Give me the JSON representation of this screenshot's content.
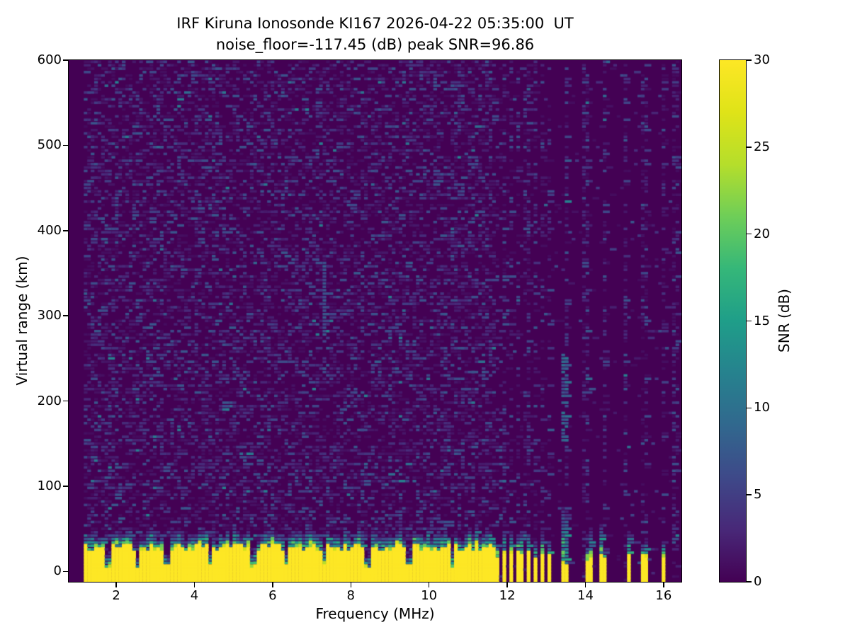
{
  "title": {
    "line1": "IRF Kiruna Ionosonde KI167 2026-04-22 05:35:00  UT",
    "line2": "noise_floor=-117.45 (dB) peak SNR=96.86"
  },
  "station": "KI167",
  "timestamp_ut": "2026-04-22 05:35:00 UT",
  "chart_data": {
    "type": "heatmap",
    "title": "IRF Kiruna Ionosonde KI167 2026-04-22 05:35:00  UT",
    "subtitle": "noise_floor=-117.45 (dB) peak SNR=96.86",
    "xlabel": "Frequency (MHz)",
    "ylabel": "Virtual range (km)",
    "colorbar_label": "SNR (dB)",
    "xlim": [
      0.785,
      16.455
    ],
    "ylim": [
      -12.2,
      600
    ],
    "clim": [
      0,
      30
    ],
    "xticks": [
      2,
      4,
      6,
      8,
      10,
      12,
      14,
      16
    ],
    "yticks": [
      0,
      100,
      200,
      300,
      400,
      500,
      600
    ],
    "colorbar_ticks": [
      0,
      5,
      10,
      15,
      20,
      25,
      30
    ],
    "grid": false,
    "legend": "none",
    "colormap": "viridis",
    "colormap_stops": [
      [
        0.0,
        "#440154"
      ],
      [
        0.1,
        "#482878"
      ],
      [
        0.2,
        "#3e4989"
      ],
      [
        0.3,
        "#31688e"
      ],
      [
        0.4,
        "#26828e"
      ],
      [
        0.5,
        "#1f9e89"
      ],
      [
        0.6,
        "#35b779"
      ],
      [
        0.7,
        "#6ece58"
      ],
      [
        0.8,
        "#b5de2b"
      ],
      [
        0.9,
        "#dfe318"
      ],
      [
        1.0,
        "#fde725"
      ]
    ],
    "noise_floor_db": -117.45,
    "peak_snr_db": 96.86,
    "data_freq_start_mhz": 1.215,
    "data_freq_end_mhz": 16.43,
    "freq_step_mhz": 0.0885,
    "range_step_km": 4,
    "background_noise": {
      "speckle_probability_below_11_7mhz": 0.42,
      "speckle_probability_11_7_to_12mhz": 0.18,
      "speckle_probability_quiet_right": 0.035,
      "typical_speckle_snr_db": [
        1,
        7
      ],
      "rare_bright_snr_db": [
        7,
        12
      ]
    },
    "ground_clutter": {
      "snr_db": 30,
      "band_bottom_km": -12,
      "yellow_top_km_mean": 28,
      "teal_transition_extra_km": 15,
      "continuous_below_mhz": 11.68,
      "notch_freqs_mhz": [
        1.8,
        2.55,
        3.3,
        4.4,
        5.5,
        6.33,
        7.3,
        8.43,
        9.5,
        10.6
      ],
      "dense_stripe_freqs_mhz": [
        11.72,
        11.92,
        12.12,
        12.32,
        12.52,
        12.72,
        12.9,
        13.08
      ],
      "isolated_stripe_freqs_mhz": [
        13.48,
        14.1,
        14.45,
        15.1,
        15.5,
        16.0
      ],
      "weak_tall_stripe_mhz": 13.48
    },
    "interference_columns_mhz": [
      11.9,
      12.1,
      12.3,
      12.5,
      12.7,
      12.9,
      13.1,
      13.5,
      14.0,
      14.5,
      15.0,
      15.5,
      16.0,
      16.3
    ],
    "echo_features": [
      {
        "freq_mhz": 7.33,
        "range_km": [
          275,
          365
        ],
        "snr_db": 7,
        "note": "thin faint vertical streak"
      },
      {
        "freq_mhz": 13.48,
        "range_km": [
          150,
          255
        ],
        "snr_db": 9,
        "note": "bright teal segment"
      }
    ]
  }
}
